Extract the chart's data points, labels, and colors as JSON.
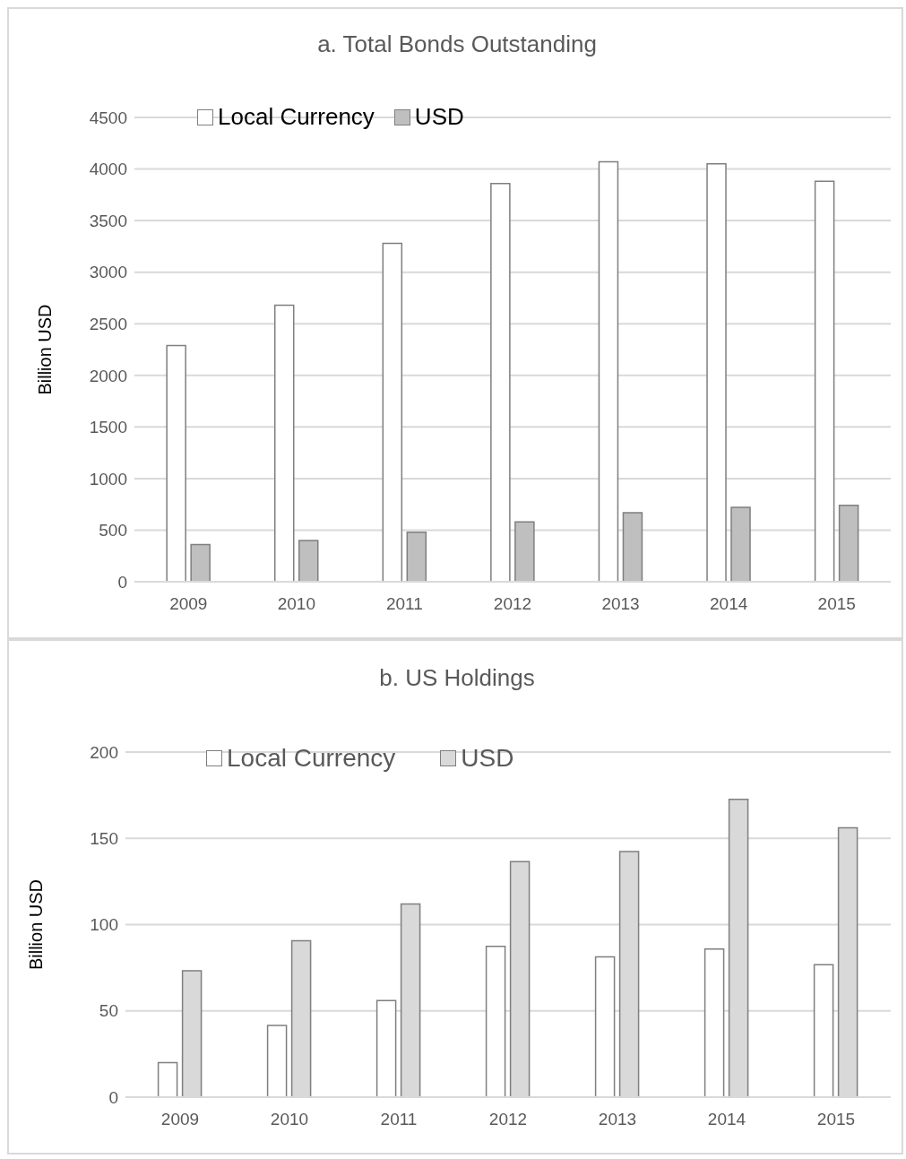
{
  "chart_data": [
    {
      "type": "bar",
      "title": "a. Total Bonds Outstanding",
      "ylabel": "Billion USD",
      "categories": [
        "2009",
        "2010",
        "2011",
        "2012",
        "2013",
        "2014",
        "2015"
      ],
      "series": [
        {
          "name": "Local Currency",
          "color": "#ffffff",
          "values": [
            2290,
            2680,
            3280,
            3860,
            4070,
            4050,
            3880
          ]
        },
        {
          "name": "USD",
          "color": "#bfbfbf",
          "values": [
            360,
            400,
            480,
            580,
            670,
            720,
            740
          ]
        }
      ],
      "ylim": [
        0,
        4500
      ],
      "yticks": [
        0,
        500,
        1000,
        1500,
        2000,
        2500,
        3000,
        3500,
        4000,
        4500
      ],
      "grid": "y",
      "legend": "top left"
    },
    {
      "type": "bar",
      "title": "b. US Holdings",
      "ylabel": "Billion USD",
      "categories": [
        "2009",
        "2010",
        "2011",
        "2012",
        "2013",
        "2014",
        "2015"
      ],
      "series": [
        {
          "name": "Local Currency",
          "color": "#ffffff",
          "values": [
            20,
            41.6,
            56,
            87.4,
            81.3,
            85.8,
            76.8
          ]
        },
        {
          "name": "USD",
          "color": "#d9d9d9",
          "values": [
            73.2,
            90.6,
            112,
            136.5,
            142.3,
            172.6,
            156.1
          ]
        }
      ],
      "ylim": [
        0,
        200
      ],
      "yticks": [
        0,
        50,
        100,
        150,
        200
      ],
      "grid": "y",
      "legend": "top left"
    }
  ]
}
